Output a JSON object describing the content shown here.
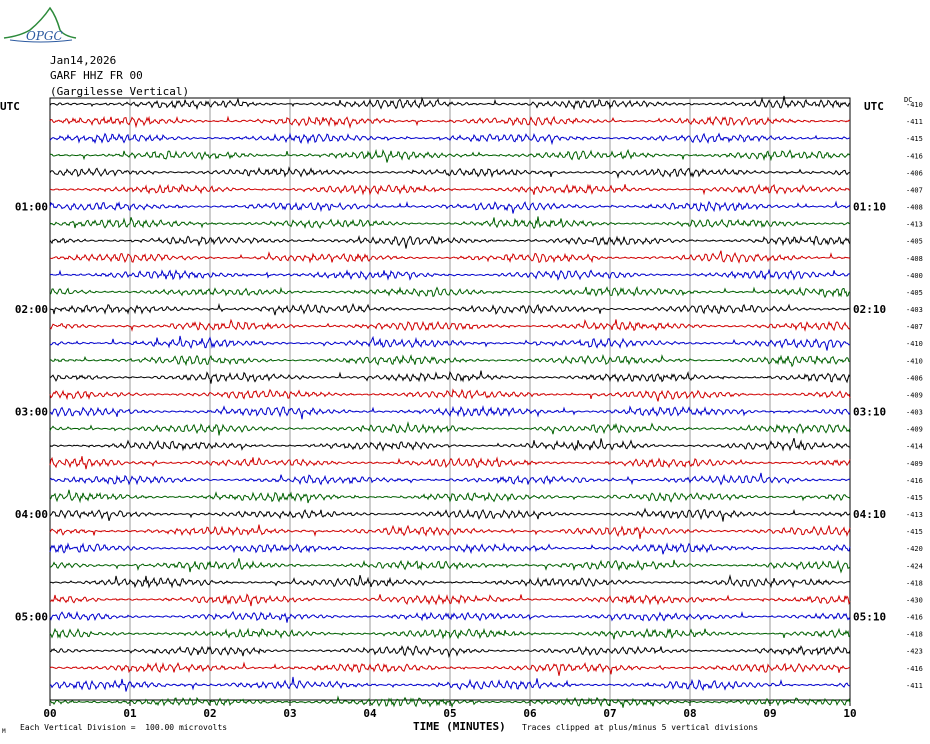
{
  "header": {
    "logo_text": "OPGC",
    "date": "Jan14,2026",
    "station": "GARF HHZ FR 00",
    "station_name": "(Gargilesse Vertical)",
    "utc_left": "UTC",
    "utc_right": "UTC",
    "dc_label": "DC"
  },
  "colors": {
    "trace_cycle": [
      "#000000",
      "#d00000",
      "#0000cc",
      "#006000"
    ],
    "grid": "#808080"
  },
  "footer": {
    "scale_note": "Each Vertical Division =  100.00 microvolts",
    "clip_note": "Traces clipped at plus/minus 5 vertical divisions",
    "corner_mark": "M"
  },
  "chart_data": {
    "type": "line",
    "title": "GARF HHZ FR 00",
    "xlabel": "TIME (MINUTES)",
    "ylabel": "UTC",
    "x_ticks": [
      "00",
      "01",
      "02",
      "03",
      "04",
      "05",
      "06",
      "07",
      "08",
      "09",
      "10"
    ],
    "xlim": [
      0,
      10
    ],
    "left_time_labels": [
      "01:00",
      "02:00",
      "03:00",
      "04:00",
      "05:00"
    ],
    "right_time_labels": [
      "01:10",
      "02:10",
      "03:10",
      "04:10",
      "05:10"
    ],
    "dc_offsets": [
      -410,
      -411,
      -415,
      -416,
      -406,
      -407,
      -408,
      -413,
      -405,
      -408,
      -400,
      -405,
      -403,
      -407,
      -410,
      -410,
      -406,
      -409,
      -403,
      -409,
      -414,
      -409,
      -416,
      -415,
      -413,
      -415,
      -420,
      -424,
      -418,
      -430,
      -416,
      -418,
      -423,
      -416,
      -411
    ],
    "trace_count": 36,
    "grid": true
  }
}
